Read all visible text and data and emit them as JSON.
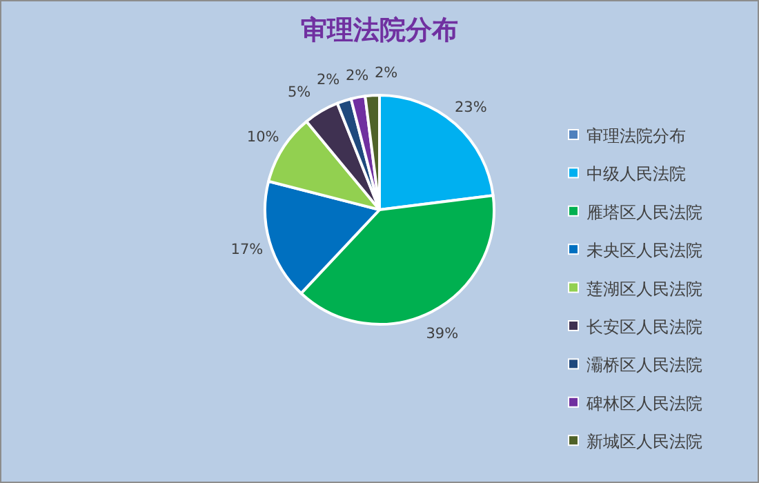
{
  "chart_data": {
    "type": "pie",
    "title": "审理法院分布",
    "categories": [
      "审理法院分布",
      "中级人民法院",
      "雁塔区人民法院",
      "未央区人民法院",
      "莲湖区人民法院",
      "长安区人民法院",
      "灞桥区人民法院",
      "碑林区人民法院",
      "新城区人民法院"
    ],
    "values": [
      0,
      23,
      39,
      17,
      10,
      5,
      2,
      2,
      2
    ],
    "value_labels": [
      null,
      "23%",
      "39%",
      "17%",
      "10%",
      "5%",
      "2%",
      "2%",
      "2%"
    ],
    "colors": [
      "#4f81bd",
      "#00b0f0",
      "#00b050",
      "#0070c0",
      "#92d050",
      "#3f3151",
      "#1f497d",
      "#7030a0",
      "#4f6228"
    ],
    "legend": "right"
  }
}
